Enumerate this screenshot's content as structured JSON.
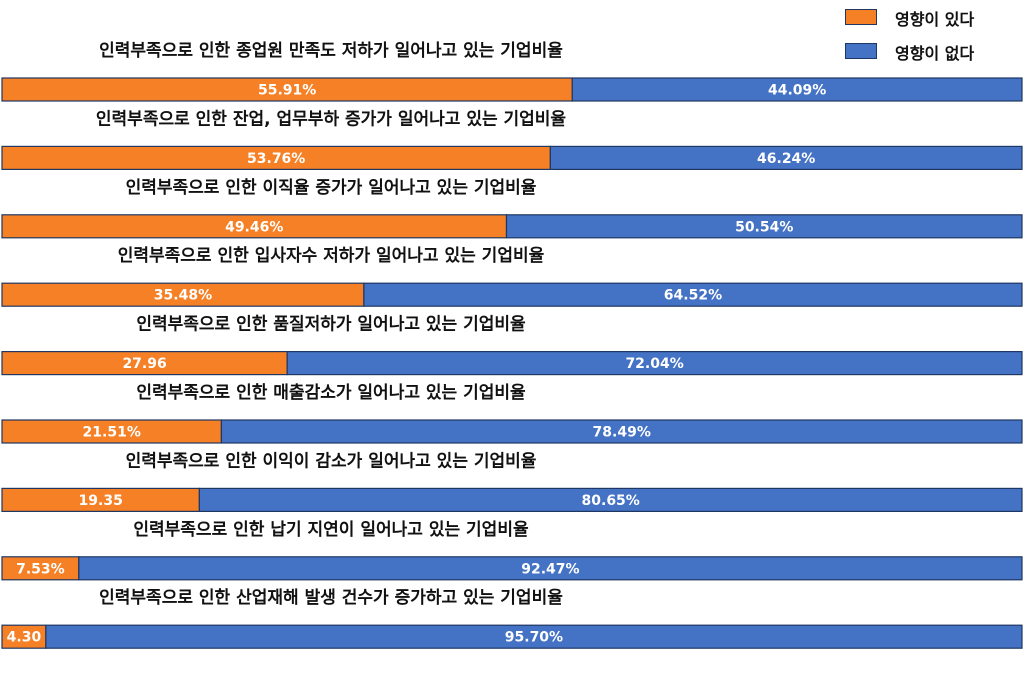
{
  "chart_data": {
    "type": "bar",
    "orientation": "horizontal",
    "stacked": true,
    "categories": [
      "인력부족으로 인한 종업원 만족도 저하가 일어나고 있는 기업비율",
      "인력부족으로 인한 잔업, 업무부하 증가가 일어나고 있는 기업비율",
      "인력부족으로 인한 이직율 증가가 일어나고 있는 기업비율",
      "인력부족으로 인한 입사자수 저하가 일어나고 있는 기업비율",
      "인력부족으로 인한 품질저하가 일어나고 있는 기업비율",
      "인력부족으로 인한 매출감소가 일어나고 있는 기업비율",
      "인력부족으로 인한 이익이 감소가 일어나고 있는 기업비율",
      "인력부족으로 인한 납기 지연이 일어나고 있는 기업비율",
      "인력부족으로 인한 산업재해 발생 건수가 증가하고 있는 기업비율"
    ],
    "series": [
      {
        "name": "영향이 있다",
        "color": "#f58025",
        "values": [
          55.91,
          53.76,
          49.46,
          35.48,
          27.96,
          21.51,
          19.35,
          7.53,
          4.3
        ],
        "labels": [
          "55.91%",
          "53.76%",
          "49.46%",
          "35.48%",
          "27.96",
          "21.51%",
          "19.35",
          "7.53%",
          "4.30"
        ]
      },
      {
        "name": "영향이 없다",
        "color": "#4472c4",
        "values": [
          44.09,
          46.24,
          50.54,
          64.52,
          72.04,
          78.49,
          80.65,
          92.47,
          95.7
        ],
        "labels": [
          "44.09%",
          "46.24%",
          "50.54%",
          "64.52%",
          "72.04%",
          "78.49%",
          "80.65%",
          "92.47%",
          "95.70%"
        ]
      }
    ],
    "xlim": [
      0,
      100
    ],
    "legend_position": "top-right"
  }
}
